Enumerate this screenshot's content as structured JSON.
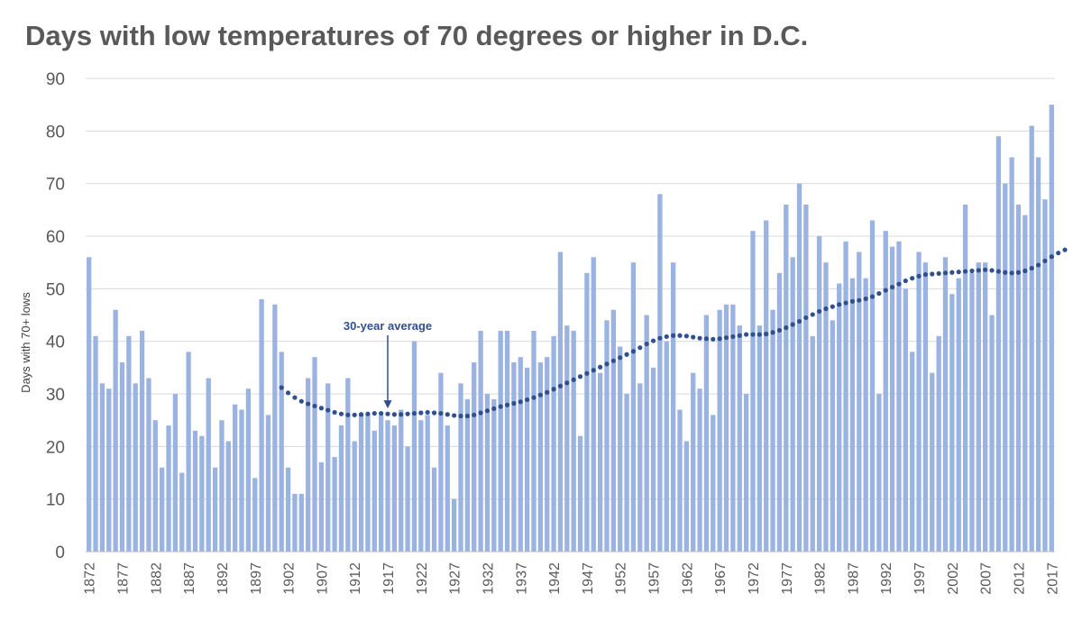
{
  "chart_data": {
    "type": "bar",
    "title": "Days with low temperatures of 70 degrees or higher in D.C.",
    "xlabel": "",
    "ylabel": "Days with 70+ lows",
    "ylim": [
      0,
      90
    ],
    "yticks": [
      0,
      10,
      20,
      30,
      40,
      50,
      60,
      70,
      80,
      90
    ],
    "grid": true,
    "legend": "none",
    "bar_color": "#9bb3e0",
    "trend_color": "#2f4f8f",
    "first_year": 1872,
    "x_tick_labels": [
      "1872",
      "1877",
      "1882",
      "1887",
      "1892",
      "1897",
      "1902",
      "1907",
      "1912",
      "1917",
      "1922",
      "1927",
      "1932",
      "1937",
      "1942",
      "1947",
      "1952",
      "1957",
      "1962",
      "1967",
      "1972",
      "1977",
      "1982",
      "1987",
      "1992",
      "1997",
      "2002",
      "2007",
      "2012",
      "2017"
    ],
    "values": [
      56,
      41,
      32,
      31,
      46,
      36,
      41,
      32,
      42,
      33,
      25,
      16,
      24,
      30,
      15,
      38,
      23,
      22,
      33,
      16,
      25,
      21,
      28,
      27,
      31,
      14,
      48,
      26,
      47,
      38,
      16,
      11,
      11,
      33,
      37,
      17,
      32,
      18,
      24,
      33,
      21,
      26,
      26,
      23,
      26,
      25,
      24,
      27,
      20,
      40,
      25,
      26,
      16,
      34,
      24,
      10,
      32,
      29,
      36,
      42,
      30,
      29,
      42,
      42,
      36,
      37,
      35,
      42,
      36,
      37,
      41,
      57,
      43,
      42,
      22,
      53,
      56,
      34,
      44,
      46,
      39,
      30,
      55,
      32,
      45,
      35,
      68,
      40,
      55,
      27,
      21,
      34,
      31,
      45,
      26,
      46,
      47,
      47,
      43,
      30,
      61,
      43,
      63,
      46,
      53,
      66,
      56,
      70,
      66,
      41,
      60,
      55,
      44,
      51,
      59,
      52,
      57,
      52,
      63,
      30,
      61,
      58,
      59,
      50,
      38,
      57,
      55,
      34,
      41,
      56,
      49,
      52,
      66,
      53,
      55,
      55,
      45,
      79,
      70,
      75,
      66,
      64,
      81,
      75,
      67,
      85
    ],
    "series": [
      {
        "name": "30-year average",
        "type": "dotted-line",
        "start_year": 1901,
        "values": [
          31.2,
          30.2,
          29.3,
          28.6,
          28.1,
          27.7,
          27.3,
          26.9,
          26.5,
          26.2,
          26.0,
          26.0,
          26.1,
          26.2,
          26.3,
          26.3,
          26.2,
          26.1,
          26.1,
          26.2,
          26.3,
          26.4,
          26.5,
          26.4,
          26.3,
          26.1,
          25.9,
          25.8,
          25.8,
          26.0,
          26.4,
          26.8,
          27.2,
          27.6,
          27.9,
          28.2,
          28.5,
          28.9,
          29.3,
          29.8,
          30.3,
          30.9,
          31.5,
          32.1,
          32.7,
          33.3,
          33.9,
          34.5,
          35.1,
          35.7,
          36.3,
          36.9,
          37.5,
          38.1,
          38.8,
          39.5,
          40.1,
          40.6,
          40.9,
          41.1,
          41.1,
          41.0,
          40.8,
          40.6,
          40.5,
          40.4,
          40.5,
          40.7,
          40.9,
          41.1,
          41.3,
          41.3,
          41.3,
          41.4,
          41.7,
          42.1,
          42.6,
          43.2,
          43.8,
          44.5,
          45.1,
          45.7,
          46.2,
          46.6,
          47.0,
          47.3,
          47.6,
          47.8,
          48.1,
          48.5,
          49.1,
          49.7,
          50.3,
          50.9,
          51.5,
          52.0,
          52.4,
          52.7,
          52.8,
          52.9,
          53.0,
          53.1,
          53.2,
          53.3,
          53.4,
          53.5,
          53.6,
          53.5,
          53.3,
          53.1,
          53.0,
          53.1,
          53.4,
          53.9,
          54.5,
          55.3,
          56.1,
          56.8,
          57.4
        ]
      }
    ],
    "annotation": {
      "text": "30-year average",
      "target_year": 1917
    }
  }
}
